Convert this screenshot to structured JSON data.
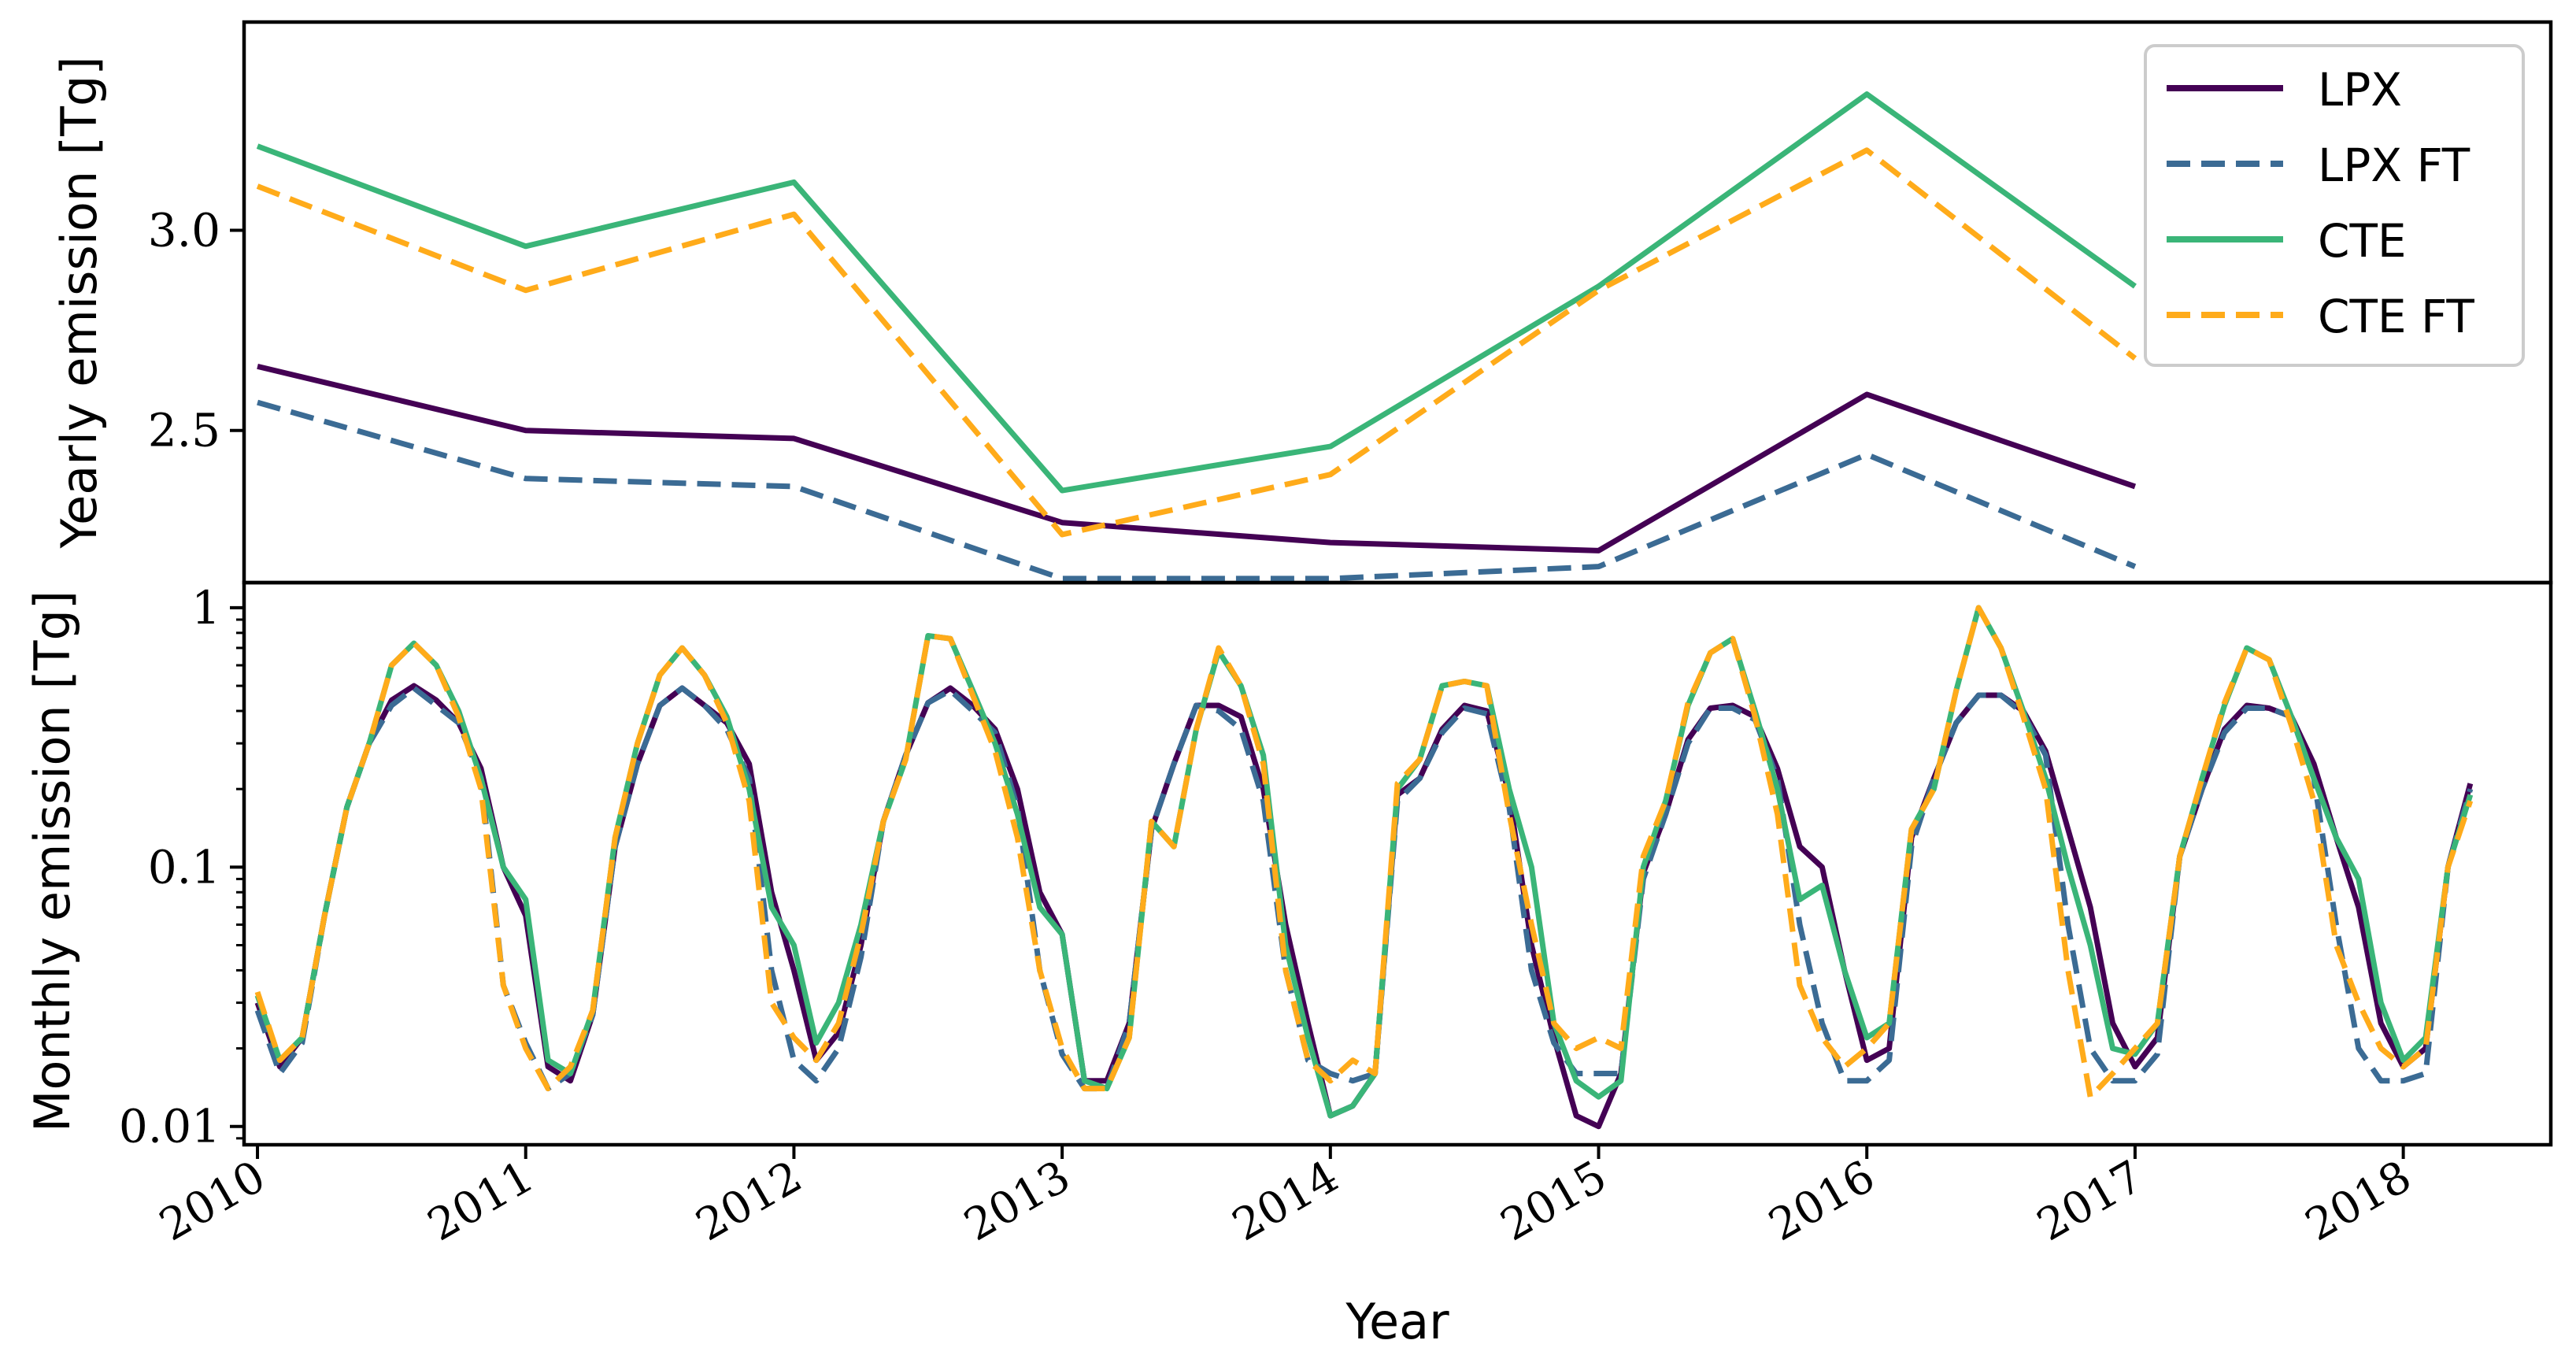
{
  "chart_data": [
    {
      "type": "line",
      "ylabel": "Yearly emission [Tg]",
      "ylim": [
        2.12,
        3.52
      ],
      "yticks": [
        {
          "value": 2.5,
          "label": "2.5"
        },
        {
          "value": 3.0,
          "label": "3.0"
        }
      ],
      "x": [
        2010,
        2011,
        2012,
        2013,
        2014,
        2015,
        2016,
        2017
      ],
      "series": [
        {
          "name": "LPX",
          "color": "#440154",
          "dash": "solid",
          "values": [
            2.66,
            2.5,
            2.48,
            2.27,
            2.22,
            2.2,
            2.59,
            2.36
          ]
        },
        {
          "name": "LPX FT",
          "color": "#3b6b94",
          "dash": "dashed",
          "values": [
            2.57,
            2.38,
            2.36,
            2.13,
            2.13,
            2.16,
            2.44,
            2.16
          ]
        },
        {
          "name": "CTE",
          "color": "#3ab578",
          "dash": "solid",
          "values": [
            3.21,
            2.96,
            3.12,
            2.35,
            2.46,
            2.86,
            3.34,
            2.86
          ]
        },
        {
          "name": "CTE FT",
          "color": "#ffab1a",
          "dash": "dashed",
          "values": [
            3.11,
            2.85,
            3.04,
            2.24,
            2.39,
            2.85,
            3.2,
            2.68
          ]
        }
      ],
      "legend_position": "top-right"
    },
    {
      "type": "line",
      "ylabel": "Monthly emission [Tg]",
      "yscale": "log",
      "ylim": [
        0.0085,
        1.25
      ],
      "yticks": [
        {
          "value": 0.01,
          "label": "0.01"
        },
        {
          "value": 0.1,
          "label": "0.1"
        },
        {
          "value": 1,
          "label": "1"
        }
      ],
      "xlabel": "Year",
      "xlim": [
        2009.95,
        2018.55
      ],
      "xticks": [
        "2010",
        "2011",
        "2012",
        "2013",
        "2014",
        "2015",
        "2016",
        "2017",
        "2018"
      ],
      "x_start": 2010.0,
      "x_step_months": 1,
      "series": [
        {
          "name": "LPX",
          "values": [
            0.03,
            0.017,
            0.022,
            0.065,
            0.17,
            0.3,
            0.44,
            0.5,
            0.44,
            0.36,
            0.24,
            0.1,
            0.065,
            0.017,
            0.015,
            0.027,
            0.12,
            0.25,
            0.42,
            0.49,
            0.42,
            0.36,
            0.25,
            0.08,
            0.04,
            0.018,
            0.023,
            0.05,
            0.15,
            0.27,
            0.43,
            0.49,
            0.42,
            0.34,
            0.2,
            0.08,
            0.055,
            0.015,
            0.015,
            0.025,
            0.14,
            0.25,
            0.42,
            0.42,
            0.38,
            0.2,
            0.06,
            0.025,
            0.011,
            0.012,
            0.016,
            0.19,
            0.22,
            0.34,
            0.42,
            0.4,
            0.19,
            0.05,
            0.022,
            0.011,
            0.01,
            0.016,
            0.095,
            0.16,
            0.31,
            0.41,
            0.42,
            0.38,
            0.24,
            0.12,
            0.1,
            0.04,
            0.018,
            0.02,
            0.13,
            0.22,
            0.36,
            0.46,
            0.46,
            0.4,
            0.28,
            0.14,
            0.07,
            0.025,
            0.017,
            0.022,
            0.11,
            0.2,
            0.34,
            0.42,
            0.41,
            0.38,
            0.25,
            0.13,
            0.07,
            0.025,
            0.017,
            0.02,
            0.1,
            0.21
          ]
        },
        {
          "name": "LPX FT",
          "values": [
            0.028,
            0.016,
            0.021,
            0.065,
            0.17,
            0.3,
            0.42,
            0.49,
            0.42,
            0.36,
            0.22,
            0.035,
            0.021,
            0.014,
            0.016,
            0.027,
            0.12,
            0.25,
            0.42,
            0.49,
            0.42,
            0.34,
            0.22,
            0.04,
            0.018,
            0.015,
            0.02,
            0.045,
            0.15,
            0.27,
            0.43,
            0.48,
            0.4,
            0.33,
            0.17,
            0.04,
            0.019,
            0.014,
            0.014,
            0.025,
            0.14,
            0.25,
            0.42,
            0.4,
            0.34,
            0.18,
            0.04,
            0.018,
            0.016,
            0.015,
            0.016,
            0.18,
            0.22,
            0.33,
            0.41,
            0.39,
            0.17,
            0.04,
            0.021,
            0.016,
            0.016,
            0.016,
            0.09,
            0.16,
            0.3,
            0.41,
            0.41,
            0.37,
            0.22,
            0.06,
            0.025,
            0.015,
            0.015,
            0.018,
            0.12,
            0.22,
            0.36,
            0.46,
            0.46,
            0.39,
            0.27,
            0.06,
            0.02,
            0.015,
            0.015,
            0.019,
            0.11,
            0.2,
            0.33,
            0.41,
            0.41,
            0.38,
            0.22,
            0.06,
            0.02,
            0.015,
            0.015,
            0.016,
            0.1,
            0.2
          ]
        },
        {
          "name": "CTE",
          "values": [
            0.032,
            0.018,
            0.022,
            0.065,
            0.17,
            0.3,
            0.6,
            0.73,
            0.6,
            0.4,
            0.22,
            0.1,
            0.075,
            0.018,
            0.016,
            0.028,
            0.13,
            0.3,
            0.55,
            0.7,
            0.55,
            0.38,
            0.2,
            0.07,
            0.05,
            0.021,
            0.03,
            0.06,
            0.15,
            0.26,
            0.78,
            0.76,
            0.48,
            0.3,
            0.16,
            0.07,
            0.055,
            0.015,
            0.014,
            0.022,
            0.15,
            0.12,
            0.34,
            0.68,
            0.5,
            0.27,
            0.05,
            0.022,
            0.011,
            0.012,
            0.016,
            0.2,
            0.26,
            0.5,
            0.52,
            0.5,
            0.2,
            0.1,
            0.025,
            0.015,
            0.013,
            0.015,
            0.1,
            0.18,
            0.42,
            0.67,
            0.76,
            0.4,
            0.2,
            0.075,
            0.085,
            0.04,
            0.022,
            0.025,
            0.14,
            0.2,
            0.48,
            1.0,
            0.7,
            0.4,
            0.22,
            0.1,
            0.05,
            0.02,
            0.019,
            0.025,
            0.11,
            0.22,
            0.42,
            0.7,
            0.63,
            0.38,
            0.22,
            0.13,
            0.09,
            0.03,
            0.018,
            0.022,
            0.1,
            0.19
          ]
        },
        {
          "name": "CTE FT",
          "values": [
            0.033,
            0.018,
            0.022,
            0.065,
            0.17,
            0.3,
            0.6,
            0.73,
            0.6,
            0.38,
            0.2,
            0.035,
            0.02,
            0.014,
            0.017,
            0.028,
            0.13,
            0.3,
            0.55,
            0.7,
            0.55,
            0.36,
            0.18,
            0.03,
            0.022,
            0.018,
            0.025,
            0.055,
            0.15,
            0.26,
            0.78,
            0.76,
            0.46,
            0.28,
            0.13,
            0.04,
            0.02,
            0.014,
            0.014,
            0.022,
            0.15,
            0.12,
            0.34,
            0.7,
            0.5,
            0.25,
            0.04,
            0.018,
            0.015,
            0.018,
            0.016,
            0.21,
            0.26,
            0.5,
            0.52,
            0.5,
            0.16,
            0.06,
            0.025,
            0.02,
            0.022,
            0.02,
            0.11,
            0.18,
            0.43,
            0.67,
            0.76,
            0.38,
            0.16,
            0.035,
            0.022,
            0.017,
            0.02,
            0.025,
            0.14,
            0.2,
            0.48,
            1.0,
            0.7,
            0.38,
            0.2,
            0.04,
            0.013,
            0.016,
            0.02,
            0.025,
            0.11,
            0.22,
            0.43,
            0.7,
            0.63,
            0.35,
            0.18,
            0.05,
            0.03,
            0.02,
            0.017,
            0.02,
            0.1,
            0.18
          ]
        }
      ]
    }
  ]
}
